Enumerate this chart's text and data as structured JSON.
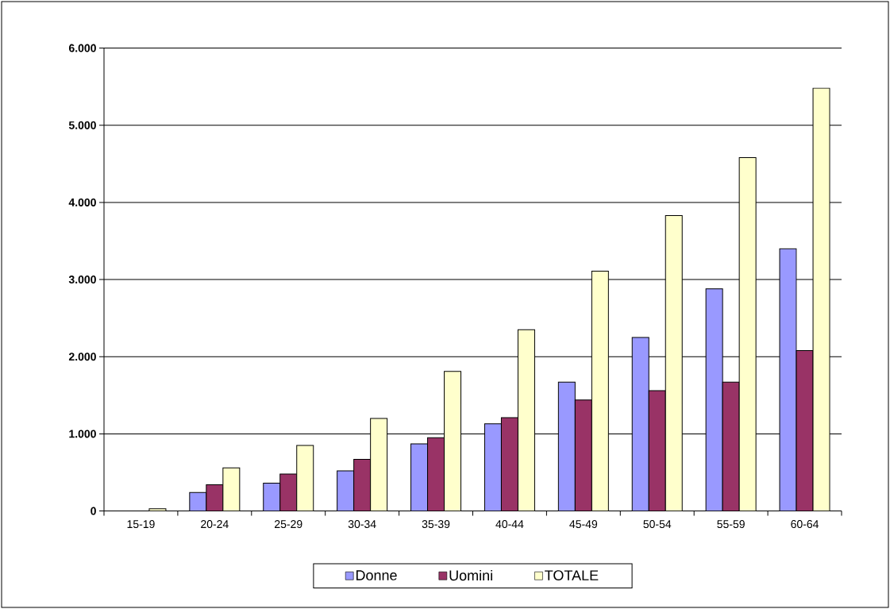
{
  "chart_data": {
    "type": "bar",
    "categories": [
      "15-19",
      "20-24",
      "25-29",
      "30-34",
      "35-39",
      "40-44",
      "45-49",
      "50-54",
      "55-59",
      "60-64"
    ],
    "series": [
      {
        "name": "Donne",
        "color": "#9999ff",
        "values": [
          0,
          240,
          360,
          520,
          870,
          1130,
          1670,
          2250,
          2880,
          3400
        ]
      },
      {
        "name": "Uomini",
        "color": "#993366",
        "values": [
          0,
          340,
          480,
          670,
          950,
          1210,
          1440,
          1560,
          1670,
          2080
        ]
      },
      {
        "name": "TOTALE",
        "color": "#ffffcc",
        "values": [
          30,
          560,
          850,
          1200,
          1810,
          2350,
          3110,
          3830,
          4580,
          5480
        ]
      }
    ],
    "ylim": [
      0,
      6000
    ],
    "yticks": [
      {
        "value": 0,
        "label": "0"
      },
      {
        "value": 1000,
        "label": "1.000"
      },
      {
        "value": 2000,
        "label": "2.000"
      },
      {
        "value": 3000,
        "label": "3.000"
      },
      {
        "value": 4000,
        "label": "4.000"
      },
      {
        "value": 5000,
        "label": "5.000"
      },
      {
        "value": 6000,
        "label": "6.000"
      }
    ],
    "grid": "y",
    "legend": "bottom"
  }
}
